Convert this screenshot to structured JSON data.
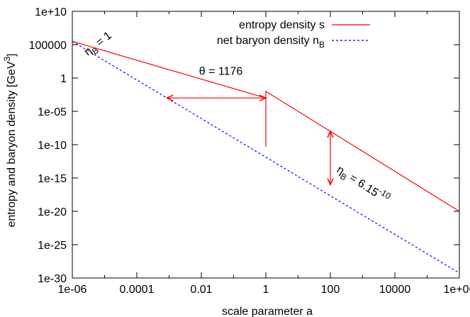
{
  "chart_data": {
    "type": "line",
    "title": "",
    "xlabel": "scale parameter a",
    "ylabel_pre": "entropy and baryon density [GeV",
    "ylabel_sup": "3",
    "ylabel_post": "]",
    "x_scale": "log",
    "y_scale": "log",
    "xlim": [
      1e-06,
      1000000.0
    ],
    "ylim": [
      1e-30,
      10000000000.0
    ],
    "grid": false,
    "legend_position": "top-right",
    "x_ticks": [
      {
        "value": 1e-06,
        "label": "1e-06"
      },
      {
        "value": 0.0001,
        "label": "0.0001"
      },
      {
        "value": 0.01,
        "label": "0.01"
      },
      {
        "value": 1,
        "label": "1"
      },
      {
        "value": 100.0,
        "label": "100"
      },
      {
        "value": 10000.0,
        "label": "10000"
      },
      {
        "value": 1000000.0,
        "label": "1e+06"
      }
    ],
    "y_ticks": [
      {
        "value": 10000000000.0,
        "label": "1e+10"
      },
      {
        "value": 100000.0,
        "label": "100000"
      },
      {
        "value": 1,
        "label": "1"
      },
      {
        "value": 1e-05,
        "label": "1e-05"
      },
      {
        "value": 1e-10,
        "label": "1e-10"
      },
      {
        "value": 1e-15,
        "label": "1e-15"
      },
      {
        "value": 1e-20,
        "label": "1e-20"
      },
      {
        "value": 1e-25,
        "label": "1e-25"
      },
      {
        "value": 1e-30,
        "label": "1e-30"
      }
    ],
    "series": [
      {
        "name": "entropy density s",
        "color": "#ff0000",
        "dash": "solid",
        "points": [
          [
            1e-06,
            316000.0
          ],
          [
            1,
            0.001
          ],
          [
            1,
            5e-11
          ],
          [
            1,
            0.01
          ],
          [
            1000000.0,
            1e-20
          ]
        ]
      },
      {
        "name": "net baryon density n",
        "name_sub": "B",
        "color": "#0000ff",
        "dash": "dashed",
        "points": [
          [
            1e-06,
            316000.0
          ],
          [
            1000000.0,
            5.6e-30
          ]
        ]
      }
    ],
    "annotations": [
      {
        "type": "label",
        "text_pre": "η",
        "text_sub": "B",
        "text_post": " = 1",
        "x": 3e-06,
        "y": 2000.0,
        "rotate": -38
      },
      {
        "type": "label",
        "text_pre": "θ = 1176",
        "x": 0.0085,
        "y": 3.2,
        "rotate": 0
      },
      {
        "type": "double-arrow",
        "color": "#ff0000",
        "from": [
          0.00085,
          0.001
        ],
        "to": [
          1,
          0.001
        ]
      },
      {
        "type": "double-arrow",
        "color": "#ff0000",
        "from": [
          100,
          1e-08
        ],
        "to": [
          100,
          1e-16
        ]
      },
      {
        "type": "label",
        "text_pre": "η",
        "text_sub": "B",
        "text_post": " = 6.15",
        "text_sup": "-10",
        "x": 150,
        "y": 1e-14,
        "rotate": 33
      }
    ]
  }
}
